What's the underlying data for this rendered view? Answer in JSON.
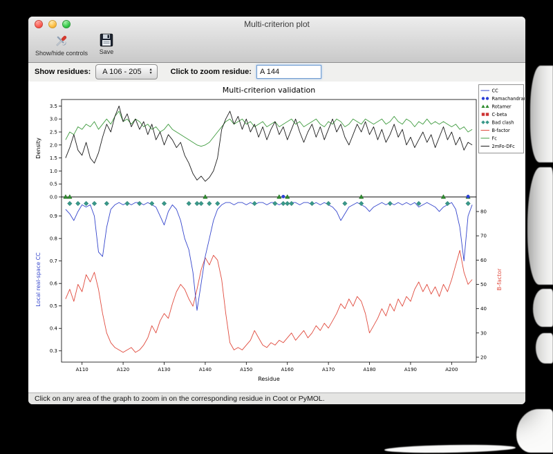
{
  "titlebar": {
    "title": "Multi-criterion plot"
  },
  "toolbar": {
    "show_hide": "Show/hide controls",
    "save": "Save"
  },
  "controls": {
    "show_residues_label": "Show residues:",
    "residue_range_value": "A 106 - 205",
    "zoom_residue_label": "Click to zoom residue:",
    "zoom_residue_value": "A 144"
  },
  "icons": {
    "stepper_up": "▲",
    "stepper_down": "▼"
  },
  "statusbar": {
    "text": "Click on any area of the graph to zoom in on the corresponding residue in Coot or PyMOL."
  },
  "chart_data": {
    "type": "line",
    "title": "Multi-criterion validation",
    "xlabel": "Residue",
    "xlim": [
      105,
      206
    ],
    "x_start_residue": 106,
    "x_ticks": [
      {
        "r": 110,
        "label": "A110"
      },
      {
        "r": 120,
        "label": "A120"
      },
      {
        "r": 130,
        "label": "A130"
      },
      {
        "r": 140,
        "label": "A140"
      },
      {
        "r": 150,
        "label": "A150"
      },
      {
        "r": 160,
        "label": "A160"
      },
      {
        "r": 170,
        "label": "A170"
      },
      {
        "r": 180,
        "label": "A180"
      },
      {
        "r": 190,
        "label": "A190"
      },
      {
        "r": 200,
        "label": "A200"
      }
    ],
    "top": {
      "ylabel": "Density",
      "ylim": [
        0,
        3.75
      ],
      "yticks": [
        0.0,
        0.5,
        1.0,
        1.5,
        2.0,
        2.5,
        3.0,
        3.5
      ],
      "series": [
        {
          "name": "Fc",
          "color": "#3f9b3f",
          "values": [
            2.2,
            2.5,
            2.4,
            2.7,
            2.6,
            2.8,
            2.7,
            2.9,
            2.6,
            2.8,
            3.0,
            2.8,
            3.1,
            3.3,
            2.9,
            3.0,
            2.8,
            3.0,
            2.9,
            2.7,
            2.8,
            2.6,
            2.7,
            2.5,
            2.6,
            2.8,
            2.6,
            2.5,
            2.4,
            2.3,
            2.2,
            2.1,
            2.0,
            1.95,
            2.0,
            2.1,
            2.3,
            2.5,
            2.7,
            2.9,
            3.0,
            2.8,
            2.9,
            3.0,
            2.8,
            2.9,
            2.7,
            2.8,
            2.9,
            2.7,
            2.8,
            2.9,
            2.7,
            2.8,
            2.9,
            3.0,
            2.8,
            2.9,
            2.7,
            2.8,
            2.9,
            3.0,
            2.8,
            2.7,
            2.9,
            2.8,
            3.0,
            2.9,
            2.7,
            2.8,
            3.0,
            2.9,
            2.8,
            3.0,
            2.9,
            2.8,
            2.9,
            3.0,
            2.8,
            2.9,
            3.1,
            2.9,
            2.8,
            3.0,
            2.9,
            2.7,
            2.9,
            2.8,
            3.0,
            2.8,
            2.9,
            2.8,
            2.9,
            2.8,
            2.7,
            2.8,
            2.6,
            2.7,
            2.5,
            2.6
          ]
        },
        {
          "name": "2mFo-DFc",
          "color": "#1a1a1a",
          "values": [
            1.5,
            1.9,
            2.4,
            1.8,
            1.6,
            2.1,
            1.5,
            1.3,
            1.7,
            2.3,
            2.8,
            2.5,
            3.1,
            3.5,
            2.9,
            3.2,
            2.7,
            3.0,
            2.6,
            2.9,
            2.4,
            2.8,
            2.2,
            2.5,
            2.0,
            2.4,
            2.2,
            1.9,
            2.1,
            1.6,
            1.3,
            0.9,
            0.65,
            0.8,
            0.6,
            0.75,
            1.0,
            1.5,
            2.6,
            3.0,
            3.3,
            2.8,
            3.1,
            2.6,
            3.0,
            2.5,
            2.8,
            2.3,
            2.7,
            2.2,
            2.6,
            2.9,
            2.4,
            2.7,
            2.2,
            2.6,
            3.0,
            2.5,
            2.1,
            2.5,
            2.8,
            2.3,
            2.7,
            2.2,
            2.6,
            3.0,
            2.5,
            2.8,
            2.3,
            2.0,
            2.4,
            2.8,
            2.5,
            2.9,
            2.4,
            2.7,
            2.2,
            2.6,
            2.1,
            2.4,
            2.8,
            2.3,
            2.6,
            2.0,
            2.3,
            1.9,
            2.2,
            2.5,
            2.1,
            2.4,
            1.9,
            2.3,
            2.7,
            2.2,
            2.5,
            2.0,
            2.3,
            1.8,
            2.1,
            2.0
          ]
        }
      ]
    },
    "bottom": {
      "left_ylabel": "Local real-space CC",
      "left_color": "#3344cc",
      "left_ylim": [
        0.25,
        0.985
      ],
      "left_yticks": [
        0.3,
        0.4,
        0.5,
        0.6,
        0.7,
        0.8,
        0.9
      ],
      "right_ylabel": "B-factor",
      "right_color": "#e0493c",
      "right_ylim": [
        18,
        86
      ],
      "right_yticks": [
        20,
        30,
        40,
        50,
        60,
        70,
        80
      ],
      "cc": {
        "name": "CC",
        "color": "#3344cc",
        "values": [
          0.93,
          0.91,
          0.88,
          0.92,
          0.95,
          0.94,
          0.95,
          0.9,
          0.74,
          0.72,
          0.85,
          0.93,
          0.95,
          0.96,
          0.95,
          0.96,
          0.95,
          0.96,
          0.96,
          0.95,
          0.96,
          0.95,
          0.94,
          0.9,
          0.86,
          0.92,
          0.95,
          0.93,
          0.88,
          0.8,
          0.75,
          0.65,
          0.48,
          0.6,
          0.72,
          0.8,
          0.88,
          0.93,
          0.95,
          0.96,
          0.96,
          0.95,
          0.96,
          0.96,
          0.95,
          0.96,
          0.95,
          0.96,
          0.96,
          0.95,
          0.96,
          0.96,
          0.95,
          0.96,
          0.95,
          0.96,
          0.96,
          0.95,
          0.96,
          0.96,
          0.95,
          0.96,
          0.95,
          0.96,
          0.95,
          0.94,
          0.92,
          0.88,
          0.91,
          0.94,
          0.95,
          0.96,
          0.95,
          0.94,
          0.92,
          0.94,
          0.95,
          0.96,
          0.95,
          0.96,
          0.95,
          0.96,
          0.95,
          0.96,
          0.95,
          0.96,
          0.94,
          0.95,
          0.96,
          0.95,
          0.94,
          0.92,
          0.94,
          0.95,
          0.96,
          0.93,
          0.85,
          0.7,
          0.9,
          0.95
        ]
      },
      "bfactor": {
        "name": "B-factor",
        "color": "#e0493c",
        "values": [
          44,
          48,
          43,
          50,
          47,
          54,
          51,
          55,
          48,
          38,
          30,
          26,
          24,
          23,
          22,
          23,
          24,
          22,
          23,
          25,
          28,
          33,
          30,
          35,
          38,
          36,
          42,
          47,
          50,
          48,
          44,
          41,
          48,
          56,
          61,
          58,
          62,
          60,
          52,
          38,
          26,
          23,
          24,
          23,
          25,
          27,
          31,
          28,
          25,
          24,
          26,
          25,
          27,
          26,
          28,
          30,
          27,
          29,
          31,
          28,
          30,
          33,
          31,
          34,
          32,
          35,
          38,
          42,
          40,
          44,
          41,
          45,
          43,
          38,
          30,
          33,
          36,
          40,
          37,
          42,
          39,
          44,
          41,
          45,
          43,
          48,
          51,
          47,
          50,
          46,
          49,
          45,
          50,
          47,
          52,
          58,
          64,
          55,
          50,
          52
        ]
      },
      "markers": {
        "bad_clash": {
          "color": "#39998a",
          "residues": [
            107,
            109,
            111,
            113,
            116,
            121,
            124,
            127,
            130,
            136,
            138,
            139,
            141,
            143,
            152,
            157,
            159,
            160,
            161,
            166,
            170,
            174,
            178,
            185,
            192,
            199,
            204
          ]
        },
        "rotamer": {
          "color": "#2e8b2e",
          "residues": [
            106,
            107,
            140,
            158,
            160,
            178,
            198,
            204
          ]
        },
        "ramachandran": {
          "color": "#2b3fd6",
          "residues": [
            159,
            204
          ]
        },
        "cbeta": {
          "color": "#cc3333",
          "residues": []
        }
      }
    },
    "legend": [
      {
        "label": "CC",
        "type": "line",
        "color": "#3344cc"
      },
      {
        "label": "Ramachandran",
        "type": "circles",
        "color": "#2b3fd6"
      },
      {
        "label": "Rotamer",
        "type": "triangles",
        "color": "#2e8b2e"
      },
      {
        "label": "C-beta",
        "type": "squares",
        "color": "#cc3333"
      },
      {
        "label": "Bad clash",
        "type": "diamonds",
        "color": "#39998a"
      },
      {
        "label": "B-factor",
        "type": "line",
        "color": "#e0493c"
      },
      {
        "label": "Fc",
        "type": "line",
        "color": "#3f9b3f"
      },
      {
        "label": "2mFo-DFc",
        "type": "line",
        "color": "#1a1a1a"
      }
    ]
  }
}
